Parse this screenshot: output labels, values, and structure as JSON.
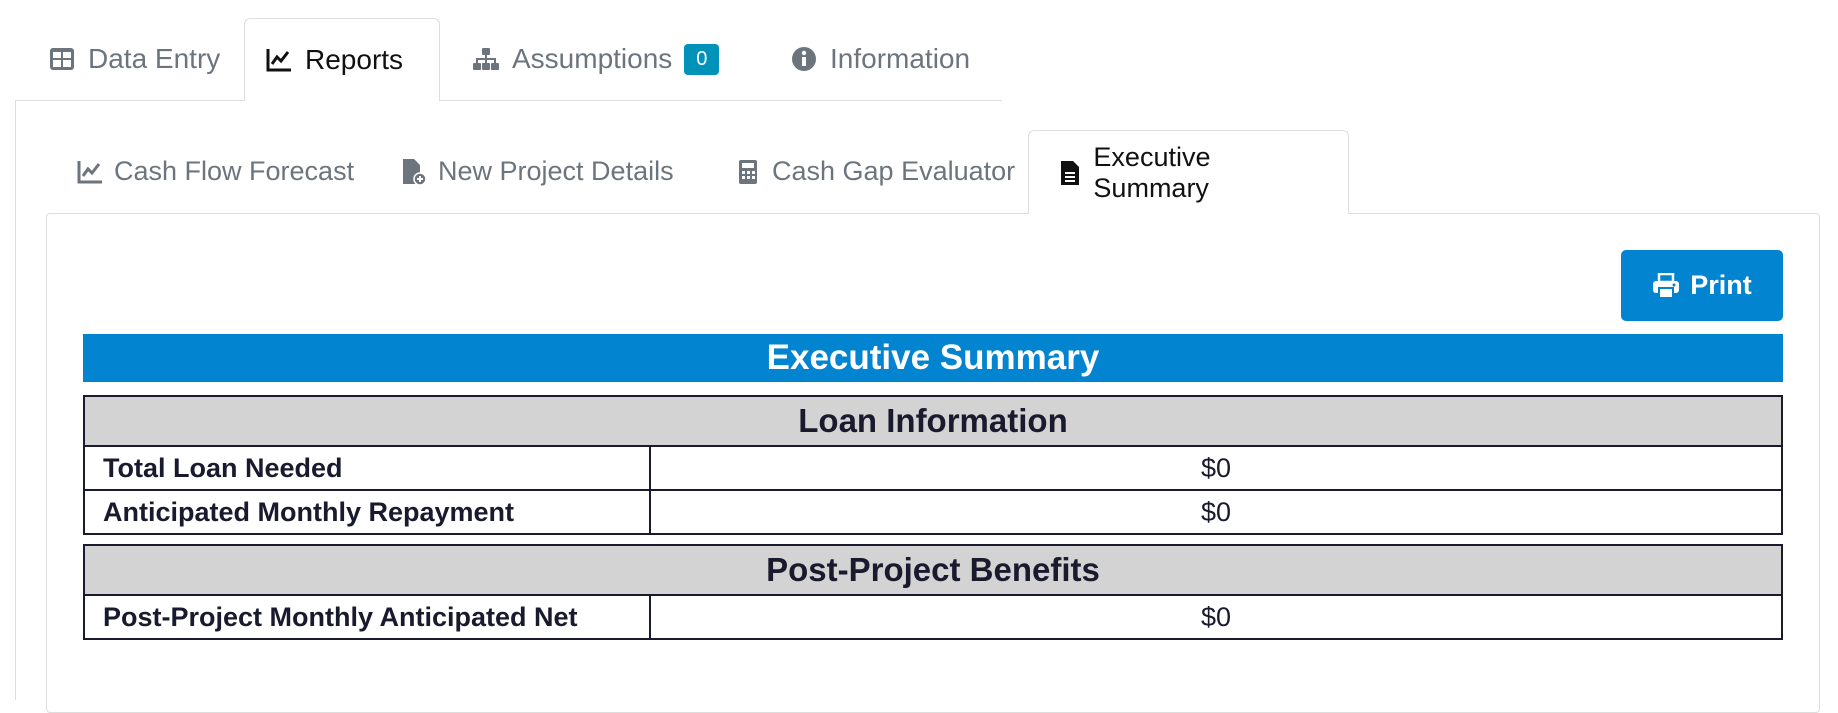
{
  "main_tabs": [
    {
      "label": "Data Entry",
      "icon": "table-icon"
    },
    {
      "label": "Reports",
      "icon": "chart-line-icon",
      "active": true
    },
    {
      "label": "Assumptions",
      "icon": "sitemap-icon",
      "badge": "0"
    },
    {
      "label": "Information",
      "icon": "info-circle-icon"
    }
  ],
  "sub_tabs": [
    {
      "label": "Cash Flow Forecast",
      "icon": "chart-line-icon"
    },
    {
      "label": "New Project Details",
      "icon": "file-plus-icon"
    },
    {
      "label": "Cash Gap Evaluator",
      "icon": "calculator-icon"
    },
    {
      "label": "Executive Summary",
      "icon": "file-text-icon",
      "active": true
    }
  ],
  "print_label": "Print",
  "title": "Executive Summary",
  "loan": {
    "header": "Loan Information",
    "rows": [
      {
        "label": "Total Loan Needed",
        "value": "$0"
      },
      {
        "label": "Anticipated Monthly Repayment",
        "value": "$0"
      }
    ]
  },
  "benefits": {
    "header": "Post-Project Benefits",
    "rows": [
      {
        "label": "Post-Project Monthly Anticipated Net",
        "value": "$0"
      }
    ]
  },
  "colors": {
    "accent": "#0284d0",
    "badge": "#0092b8",
    "table_header": "#d3d3d3"
  }
}
